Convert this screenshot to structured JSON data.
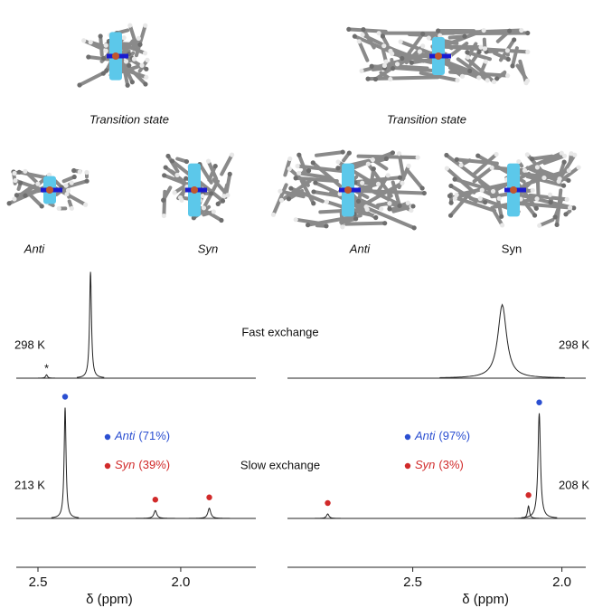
{
  "top_labels": [
    "Transition state",
    "Transition state",
    "Anti",
    "Syn",
    "Anti",
    "Syn"
  ],
  "exchange_labels": [
    "Fast exchange",
    "Slow exchange"
  ],
  "chart_data": [
    {
      "type": "nmr",
      "xlabel": "δ (ppm)",
      "xlim": [
        2.576,
        1.737
      ],
      "xticks": [
        2.5,
        {
          "value": 2,
          "label": "2.0"
        }
      ],
      "legend": [
        {
          "name": "Anti",
          "share": "(71%)",
          "color": "#2b4fd1"
        },
        {
          "name": "Syn",
          "share": "(39%)",
          "color": "#d12a2a"
        }
      ],
      "series": [
        {
          "name": "298 K",
          "peaks": [
            2.316,
            2.47
          ],
          "heights": [
            0.94,
            0.03
          ],
          "widths": [
            0.008,
            0.008
          ],
          "peak_labels": [
            null,
            "*"
          ]
        },
        {
          "name": "213 K",
          "peaks": [
            2.405,
            2.089,
            1.9
          ],
          "heights": [
            0.98,
            0.07,
            0.09
          ],
          "widths": [
            0.008,
            0.012,
            0.012
          ],
          "peak_colors": [
            "#2b4fd1",
            "#d12a2a",
            "#d12a2a"
          ]
        }
      ]
    },
    {
      "type": "nmr",
      "xlabel": "δ (ppm)",
      "xlim": [
        2.92,
        1.92
      ],
      "xticks": [
        2.5,
        {
          "value": 2,
          "label": "2.0"
        }
      ],
      "legend": [
        {
          "name": "Anti",
          "share": "(97%)",
          "color": "#2b4fd1"
        },
        {
          "name": "Syn",
          "share": "(3%)",
          "color": "#d12a2a"
        }
      ],
      "series": [
        {
          "name": "298 K",
          "peaks": [
            2.2
          ],
          "heights": [
            0.65
          ],
          "widths": [
            0.035
          ]
        },
        {
          "name": "208 K",
          "peaks": [
            2.076,
            2.785,
            2.112
          ],
          "heights": [
            0.93,
            0.04,
            0.11
          ],
          "widths": [
            0.01,
            0.01,
            0.008
          ],
          "peak_colors": [
            "#2b4fd1",
            "#d12a2a",
            "#d12a2a"
          ]
        }
      ]
    }
  ]
}
